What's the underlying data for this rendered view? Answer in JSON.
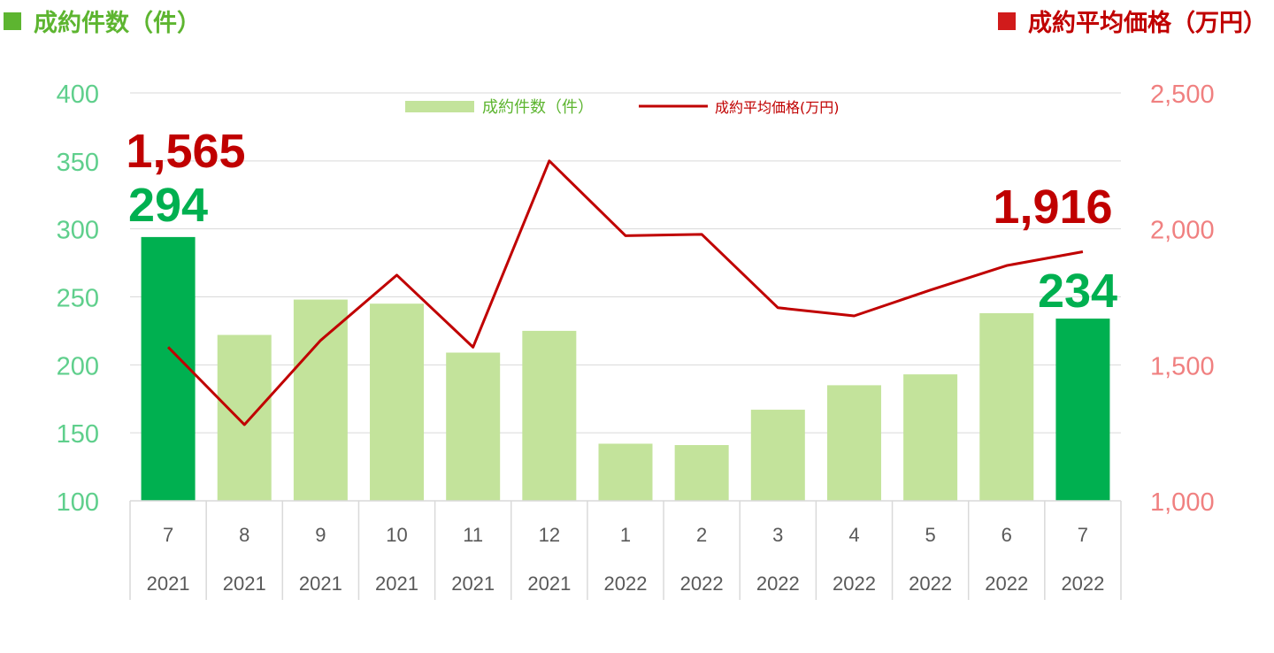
{
  "header": {
    "left_title": "成約件数（件）",
    "right_title": "成約平均価格（万円）"
  },
  "colors": {
    "bar": "#c3e39b",
    "bar_highlight": "#00b050",
    "line": "#c00000",
    "left_axis": "#5fcf8c",
    "right_axis": "#f08080",
    "left_header": "#5db530",
    "right_header": "#c00000",
    "grid": "#d9d9d9",
    "category_text": "#595959"
  },
  "chart_data": {
    "type": "bar",
    "categories": [
      "7",
      "8",
      "9",
      "10",
      "11",
      "12",
      "1",
      "2",
      "3",
      "4",
      "5",
      "6",
      "7"
    ],
    "years": [
      "2021",
      "2021",
      "2021",
      "2021",
      "2021",
      "2021",
      "2022",
      "2022",
      "2022",
      "2022",
      "2022",
      "2022",
      "2022"
    ],
    "series": [
      {
        "name": "成約件数（件）",
        "type": "bar",
        "axis": "left",
        "values": [
          294,
          222,
          248,
          245,
          209,
          225,
          142,
          141,
          167,
          185,
          193,
          238,
          234
        ],
        "highlight": [
          true,
          false,
          false,
          false,
          false,
          false,
          false,
          false,
          false,
          false,
          false,
          false,
          true
        ]
      },
      {
        "name": "成約平均価格(万円)",
        "type": "line",
        "axis": "right",
        "values": [
          1565,
          1280,
          1590,
          1830,
          1565,
          2250,
          1975,
          1980,
          1710,
          1680,
          1775,
          1865,
          1916
        ]
      }
    ],
    "y_left": {
      "range": [
        100,
        400
      ],
      "ticks": [
        "100",
        "150",
        "200",
        "250",
        "300",
        "350",
        "400"
      ]
    },
    "y_right": {
      "range": [
        1000,
        2500
      ],
      "ticks": [
        "1,000",
        "1,500",
        "2,000",
        "2,500"
      ]
    },
    "grid": true,
    "legend_position": "top-center",
    "annotations": [
      {
        "text": "1,565",
        "series": "line",
        "index": 0
      },
      {
        "text": "294",
        "series": "bar",
        "index": 0
      },
      {
        "text": "1,916",
        "series": "line",
        "index": 12
      },
      {
        "text": "234",
        "series": "bar",
        "index": 12
      }
    ]
  }
}
